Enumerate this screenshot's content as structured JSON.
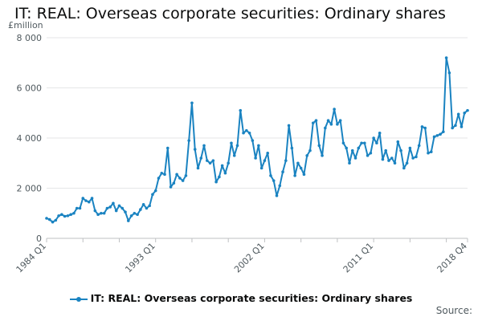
{
  "chart_data": {
    "type": "line",
    "title": "IT: REAL: Overseas corporate securities: Ordinary shares",
    "ylabel": "£million",
    "ylim": [
      0,
      8000
    ],
    "yticks": [
      0,
      2000,
      4000,
      6000,
      8000
    ],
    "ytick_labels": [
      "0",
      "2 000",
      "4 000",
      "6 000",
      "8 000"
    ],
    "xtick_labels": [
      {
        "label": "1984 Q1",
        "index": 0
      },
      {
        "label": "1993 Q1",
        "index": 36
      },
      {
        "label": "2002 Q1",
        "index": 72
      },
      {
        "label": "2011 Q1",
        "index": 108
      },
      {
        "label": "2018 Q4",
        "index": 139
      }
    ],
    "x_start": "1984 Q1",
    "x_end": "2018 Q4",
    "series": [
      {
        "name": "IT: REAL: Overseas corporate securities: Ordinary shares",
        "color": "#1a83c1",
        "values": [
          800,
          750,
          650,
          720,
          900,
          950,
          880,
          900,
          950,
          1000,
          1200,
          1200,
          1600,
          1500,
          1450,
          1600,
          1100,
          950,
          1000,
          1000,
          1200,
          1250,
          1400,
          1100,
          1300,
          1200,
          1050,
          700,
          900,
          1000,
          950,
          1150,
          1350,
          1200,
          1300,
          1750,
          1900,
          2400,
          2600,
          2550,
          3600,
          2050,
          2200,
          2550,
          2400,
          2300,
          2500,
          3900,
          5400,
          3550,
          2800,
          3200,
          3700,
          3100,
          3000,
          3100,
          2250,
          2450,
          2900,
          2600,
          3000,
          3800,
          3300,
          3700,
          5100,
          4200,
          4300,
          4200,
          3900,
          3200,
          3700,
          2800,
          3100,
          3400,
          2500,
          2300,
          1700,
          2100,
          2650,
          3100,
          4500,
          3600,
          2500,
          3000,
          2800,
          2550,
          3300,
          3500,
          4600,
          4700,
          3700,
          3300,
          4400,
          4700,
          4550,
          5150,
          4550,
          4700,
          3800,
          3600,
          3000,
          3500,
          3200,
          3600,
          3800,
          3800,
          3300,
          3400,
          4000,
          3800,
          4200,
          3150,
          3500,
          3100,
          3200,
          3000,
          3850,
          3500,
          2800,
          3000,
          3600,
          3200,
          3250,
          3700,
          4450,
          4400,
          3400,
          3450,
          4050,
          4100,
          4150,
          4250,
          7200,
          6600,
          4400,
          4500,
          4950,
          4450,
          5000,
          5100
        ]
      }
    ]
  },
  "legend": {
    "label": "IT: REAL: Overseas corporate securities: Ordinary shares"
  },
  "footer": {
    "source": "Source:"
  }
}
